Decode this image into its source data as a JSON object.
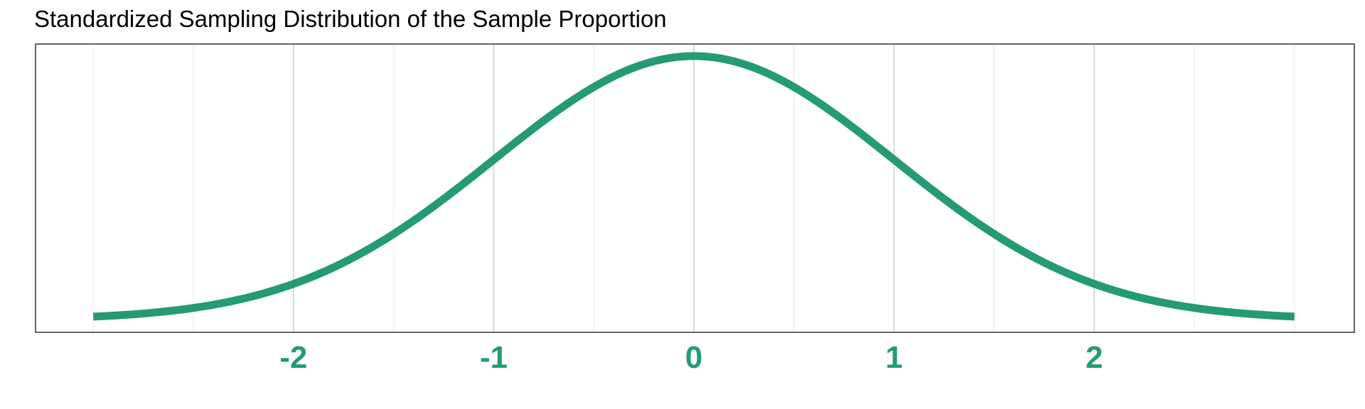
{
  "chart_data": {
    "type": "line",
    "title": "Standardized Sampling Distribution of the Sample Proportion",
    "xlabel": "",
    "ylabel": "",
    "xlim": [
      -3,
      3
    ],
    "ylim": [
      0,
      0.4
    ],
    "series": [
      {
        "curve": "standard-normal-density",
        "x": [
          -3.0,
          -2.75,
          -2.5,
          -2.25,
          -2.0,
          -1.75,
          -1.5,
          -1.25,
          -1.0,
          -0.75,
          -0.5,
          -0.25,
          0.0,
          0.25,
          0.5,
          0.75,
          1.0,
          1.25,
          1.5,
          1.75,
          2.0,
          2.25,
          2.5,
          2.75,
          3.0
        ],
        "y": [
          0.0044,
          0.0091,
          0.0175,
          0.0317,
          0.054,
          0.0863,
          0.1295,
          0.1826,
          0.242,
          0.3011,
          0.3521,
          0.3867,
          0.3989,
          0.3867,
          0.3521,
          0.3011,
          0.242,
          0.1826,
          0.1295,
          0.0863,
          0.054,
          0.0317,
          0.0175,
          0.0091,
          0.0044
        ]
      }
    ],
    "x_ticks": [
      "-2",
      "-1",
      "0",
      "1",
      "2"
    ],
    "x_tick_values": [
      -2,
      -1,
      0,
      1,
      2
    ],
    "minor_gridlines_x": [
      -3,
      -2.5,
      -1.5,
      -0.5,
      0.5,
      1.5,
      2.5,
      3
    ],
    "grid": "vertical-only",
    "colors": {
      "curve": "#239b73",
      "tick_labels": "#239b73",
      "major_grid": "#d9d9d9",
      "minor_grid": "#ececec",
      "panel_border": "#333333"
    }
  }
}
